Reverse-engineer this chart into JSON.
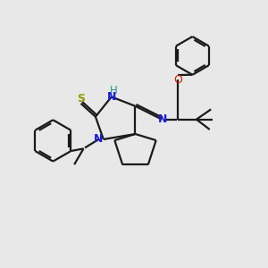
{
  "bg_color": "#e8e8e8",
  "bond_color": "#1a1a1a",
  "n_color": "#1c1cdd",
  "s_color": "#999900",
  "o_color": "#cc2200",
  "h_color": "#2a9090",
  "figsize": [
    3.0,
    3.0
  ],
  "dpi": 100,
  "xlim": [
    0,
    10
  ],
  "ylim": [
    0,
    10
  ]
}
